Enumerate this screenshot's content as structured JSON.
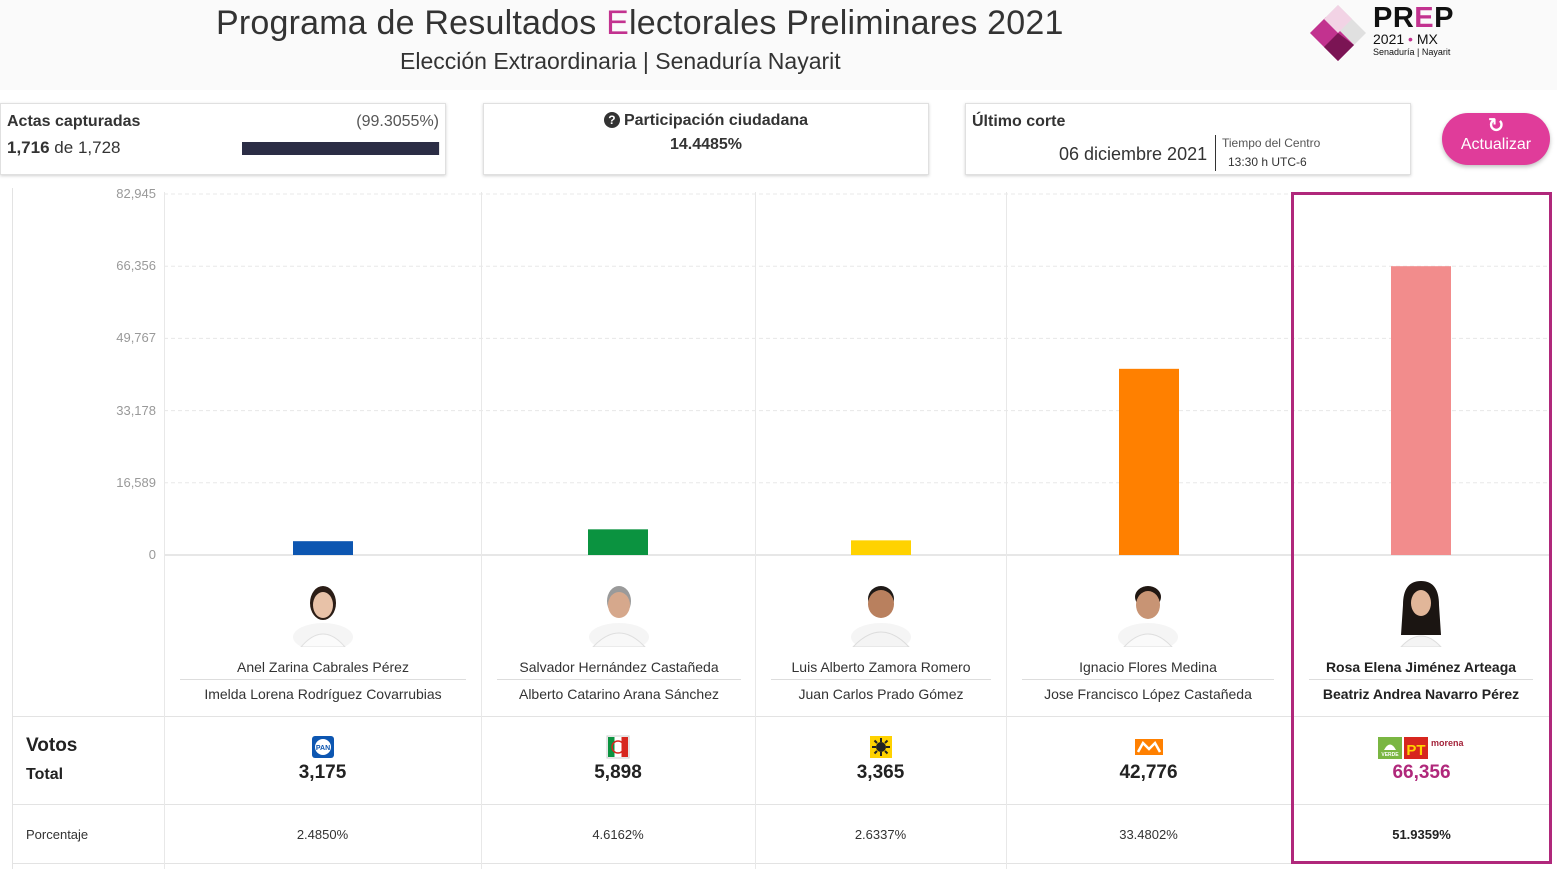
{
  "header": {
    "title_before": "Programa de Resultados ",
    "title_accent": "E",
    "title_after": "lectorales Preliminares 2021",
    "subtitle": "Elección Extraordinaria | Senaduría Nayarit"
  },
  "logo": {
    "prep_before": "PR",
    "prep_accent": "E",
    "prep_after": "P",
    "year": "2021",
    "country": "MX",
    "sub": "Senaduría | Nayarit"
  },
  "actas": {
    "label": "Actas capturadas",
    "percent": "(99.3055%)",
    "captured": "1,716",
    "connector": "de",
    "total": "1,728",
    "progress_fraction": 0.993055
  },
  "participacion": {
    "label": "Participación ciudadana",
    "value": "14.4485%"
  },
  "corte": {
    "label": "Último corte",
    "date": "06 diciembre 2021",
    "timezone_label": "Tiempo del Centro",
    "time": "13:30 h UTC-6"
  },
  "update_button": {
    "label": "Actualizar"
  },
  "chart_data": {
    "type": "bar",
    "categories": [
      "Anel Zarina Cabrales Pérez",
      "Salvador Hernández Castañeda",
      "Luis Alberto Zamora Romero",
      "Ignacio Flores Medina",
      "Rosa Elena Jiménez Arteaga"
    ],
    "values": [
      3175,
      5898,
      3365,
      42776,
      66356
    ],
    "colors": [
      "#0d56b1",
      "#0b9340",
      "#ffd200",
      "#ff8000",
      "#f28c8c"
    ],
    "ylim": [
      0,
      82945
    ],
    "yticks": [
      "0",
      "16,589",
      "33,178",
      "49,767",
      "66,356",
      "82,945"
    ],
    "grid": true
  },
  "table": {
    "votos_label": "Votos",
    "total_label": "Total",
    "percent_label": "Porcentaje"
  },
  "candidates": [
    {
      "name": "Anel Zarina Cabrales Pérez",
      "suplente": "Imelda Lorena Rodríguez Covarrubias",
      "party": "PAN",
      "votes": "3,175",
      "percent": "2.4850%",
      "winner": false
    },
    {
      "name": "Salvador Hernández Castañeda",
      "suplente": "Alberto Catarino Arana Sánchez",
      "party": "PRI",
      "votes": "5,898",
      "percent": "4.6162%",
      "winner": false
    },
    {
      "name": "Luis Alberto Zamora Romero",
      "suplente": "Juan Carlos Prado Gómez",
      "party": "PRD",
      "votes": "3,365",
      "percent": "2.6337%",
      "winner": false
    },
    {
      "name": "Ignacio Flores Medina",
      "suplente": "Jose Francisco López Castañeda",
      "party": "MC",
      "votes": "42,776",
      "percent": "33.4802%",
      "winner": false
    },
    {
      "name": "Rosa Elena Jiménez Arteaga",
      "suplente": "Beatriz Andrea Navarro Pérez",
      "party": "VERDE-PT-morena",
      "votes": "66,356",
      "percent": "51.9359%",
      "winner": true
    }
  ],
  "party_marks": {
    "pan": "PAN",
    "verde": "VERDE",
    "pt": "PT",
    "morena": "morena"
  }
}
